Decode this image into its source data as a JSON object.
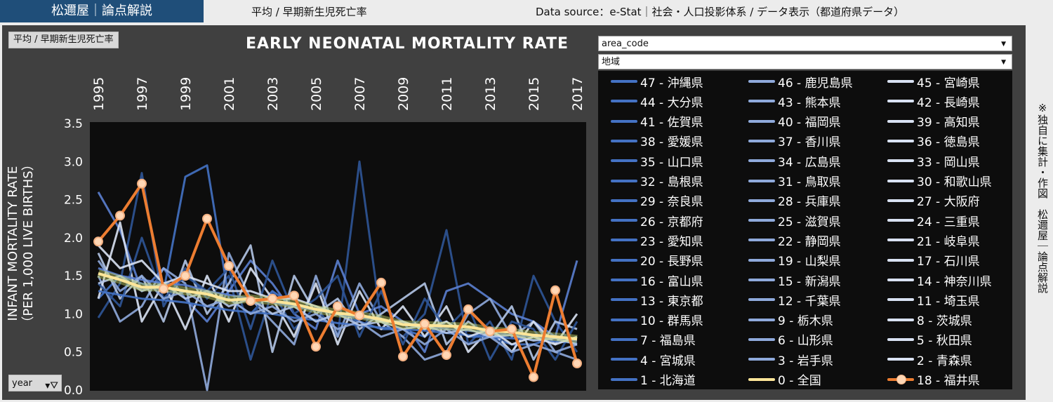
{
  "header": {
    "brand": "松邇屋｜論点解説",
    "subtitle": "平均 / 早期新生児死亡率",
    "source": "Data source：e-Stat｜社会・人口投影体系 / データ表示（都道府県データ）"
  },
  "side_note": "※独自に集計・作図　松邇屋｜論点解説",
  "badge": "平均 / 早期新生児死亡率",
  "filters": {
    "area_code": "area_code",
    "region": "地域",
    "year": "year"
  },
  "colors": {
    "national": "#ffe699",
    "fukui": "#f4b183",
    "prefecture_palette": [
      "#2f5597",
      "#4472c4",
      "#5b7fd0",
      "#8faadc",
      "#b4c7e7",
      "#d9e2f3"
    ]
  },
  "legend": [
    "47 - 沖縄県",
    "46 - 鹿児島県",
    "45 - 宮崎県",
    "44 - 大分県",
    "43 - 熊本県",
    "42 - 長崎県",
    "41 - 佐賀県",
    "40 - 福岡県",
    "39 - 高知県",
    "38 - 愛媛県",
    "37 - 香川県",
    "36 - 徳島県",
    "35 - 山口県",
    "34 - 広島県",
    "33 - 岡山県",
    "32 - 島根県",
    "31 - 鳥取県",
    "30 - 和歌山県",
    "29 - 奈良県",
    "28 - 兵庫県",
    "27 - 大阪府",
    "26 - 京都府",
    "25 - 滋賀県",
    "24 - 三重県",
    "23 - 愛知県",
    "22 - 静岡県",
    "21 - 岐阜県",
    "20 - 長野県",
    "19 - 山梨県",
    "17 - 石川県",
    "16 - 富山県",
    "15 - 新潟県",
    "14 - 神奈川県",
    "13 - 東京都",
    "12 - 千葉県",
    "11 - 埼玉県",
    "10 - 群馬県",
    "9 - 栃木県",
    "8 - 茨城県",
    "7 - 福島県",
    "6 - 山形県",
    "5 - 秋田県",
    "4 - 宮城県",
    "3 - 岩手県",
    "2 - 青森県",
    "1 - 北海道",
    "0 - 全国",
    "18 - 福井県"
  ],
  "chart_data": {
    "type": "line",
    "title": "EARLY NEONATAL MORTALITY RATE",
    "ylabel": "INFANT MORTALITY RATE",
    "ylabel_sub": "（PER 1,000 LIVE BIRTHS）",
    "xlabel": "",
    "x": [
      1995,
      1996,
      1997,
      1998,
      1999,
      2000,
      2001,
      2002,
      2003,
      2004,
      2005,
      2006,
      2007,
      2008,
      2009,
      2010,
      2011,
      2012,
      2013,
      2014,
      2015,
      2016,
      2017
    ],
    "x_tick_labels": [
      "1995",
      "1997",
      "1999",
      "2001",
      "2003",
      "2005",
      "2007",
      "2009",
      "2011",
      "2013",
      "2015",
      "2017"
    ],
    "ylim": [
      0,
      3.5
    ],
    "y_ticks": [
      "3.5",
      "3.0",
      "2.5",
      "2.0",
      "1.5",
      "1.0",
      "0.5",
      "0.0"
    ],
    "grid": false,
    "legend_position": "right",
    "series": [
      {
        "name": "0 - 全国",
        "values": [
          1.53,
          1.45,
          1.35,
          1.35,
          1.3,
          1.26,
          1.18,
          1.2,
          1.17,
          1.13,
          1.06,
          1.01,
          0.98,
          0.93,
          0.86,
          0.85,
          0.84,
          0.83,
          0.78,
          0.76,
          0.72,
          0.7,
          0.67
        ]
      },
      {
        "name": "18 - 福井県",
        "values": [
          1.95,
          2.29,
          2.71,
          1.33,
          1.5,
          2.25,
          1.63,
          1.17,
          1.2,
          1.24,
          0.57,
          1.1,
          0.98,
          1.41,
          0.44,
          0.87,
          0.46,
          1.06,
          0.77,
          0.8,
          0.17,
          1.31,
          0.35
        ]
      },
      {
        "name": "45 - 宮崎県",
        "values": [
          0.95,
          1.4,
          2.85,
          1.1,
          1.6,
          1.2,
          1.5,
          0.4,
          1.3,
          0.8,
          1.1,
          0.7,
          3.0,
          0.9,
          0.7,
          1.0,
          2.1,
          0.6,
          0.9,
          0.4,
          1.5,
          0.9,
          0.5
        ]
      },
      {
        "name": "40 - 福岡県",
        "values": [
          1.2,
          1.5,
          1.4,
          1.3,
          2.8,
          2.95,
          1.2,
          1.0,
          1.3,
          1.1,
          0.9,
          1.0,
          0.9,
          0.8,
          0.8,
          0.7,
          0.9,
          0.7,
          0.7,
          0.6,
          0.6,
          0.7,
          0.6
        ]
      },
      {
        "name": "46 - 鹿児島県",
        "values": [
          2.6,
          2.1,
          1.3,
          1.6,
          1.2,
          0.9,
          1.3,
          1.7,
          1.4,
          1.0,
          0.8,
          1.7,
          1.0,
          1.1,
          0.9,
          0.5,
          1.3,
          1.4,
          1.2,
          1.0,
          0.9,
          0.7,
          1.7
        ]
      },
      {
        "name": "47 - 沖縄県",
        "values": [
          1.5,
          0.9,
          1.1,
          1.6,
          1.4,
          0.0,
          1.8,
          1.2,
          0.9,
          0.6,
          1.5,
          0.7,
          1.4,
          0.9,
          0.7,
          0.4,
          0.5,
          1.0,
          1.2,
          0.7,
          0.9,
          0.5,
          0.4
        ]
      },
      {
        "name": "32 - 島根県",
        "values": [
          1.8,
          1.2,
          1.5,
          0.9,
          1.7,
          1.0,
          1.4,
          1.9,
          0.5,
          1.5,
          1.0,
          1.2,
          0.8,
          1.0,
          1.2,
          1.4,
          0.6,
          0.9,
          0.7,
          1.1,
          0.4,
          0.9,
          0.8
        ]
      },
      {
        "name": "31 - 鳥取県",
        "values": [
          1.2,
          2.2,
          0.9,
          1.4,
          0.8,
          1.5,
          0.9,
          1.6,
          1.2,
          0.7,
          1.4,
          0.6,
          1.3,
          0.8,
          1.1,
          0.7,
          1.1,
          0.5,
          0.8,
          0.5,
          0.9,
          0.6,
          1.0
        ]
      },
      {
        "name": "39 - 高知県",
        "values": [
          1.4,
          1.1,
          2.0,
          1.2,
          1.5,
          1.3,
          1.6,
          0.8,
          1.7,
          1.0,
          1.2,
          1.5,
          0.7,
          1.3,
          0.6,
          1.2,
          0.8,
          1.1,
          0.4,
          0.9,
          0.8,
          0.4,
          0.9
        ]
      },
      {
        "name": "13 - 東京都",
        "values": [
          1.3,
          1.25,
          1.2,
          1.18,
          1.15,
          1.1,
          1.05,
          1.02,
          1.0,
          0.95,
          0.92,
          0.88,
          0.85,
          0.82,
          0.8,
          0.78,
          0.75,
          0.72,
          0.7,
          0.68,
          0.66,
          0.64,
          0.62
        ]
      },
      {
        "name": "27 - 大阪府",
        "values": [
          1.6,
          1.5,
          1.45,
          1.4,
          1.38,
          1.3,
          1.25,
          1.2,
          1.15,
          1.1,
          1.05,
          1.0,
          0.95,
          0.92,
          0.88,
          0.85,
          0.8,
          0.78,
          0.75,
          0.72,
          0.7,
          0.68,
          0.65
        ]
      },
      {
        "name": "1 - 北海道",
        "values": [
          1.7,
          1.3,
          1.5,
          1.2,
          1.3,
          1.1,
          1.2,
          1.0,
          1.1,
          0.9,
          1.0,
          0.8,
          0.9,
          0.7,
          0.8,
          0.6,
          0.8,
          0.6,
          0.7,
          0.5,
          0.6,
          0.5,
          0.6
        ]
      },
      {
        "name": "23 - 愛知県",
        "values": [
          1.4,
          1.5,
          1.3,
          1.4,
          1.2,
          1.3,
          1.1,
          1.2,
          1.0,
          1.1,
          0.9,
          1.0,
          0.85,
          0.9,
          0.8,
          0.85,
          0.75,
          0.8,
          0.7,
          0.72,
          0.65,
          0.68,
          0.6
        ]
      },
      {
        "name": "8 - 茨城県",
        "values": [
          1.9,
          1.6,
          1.7,
          1.4,
          1.5,
          1.4,
          1.3,
          1.3,
          1.2,
          1.2,
          1.1,
          1.0,
          1.0,
          0.9,
          0.9,
          0.8,
          0.9,
          0.7,
          0.8,
          0.6,
          0.7,
          0.6,
          0.7
        ]
      }
    ]
  }
}
